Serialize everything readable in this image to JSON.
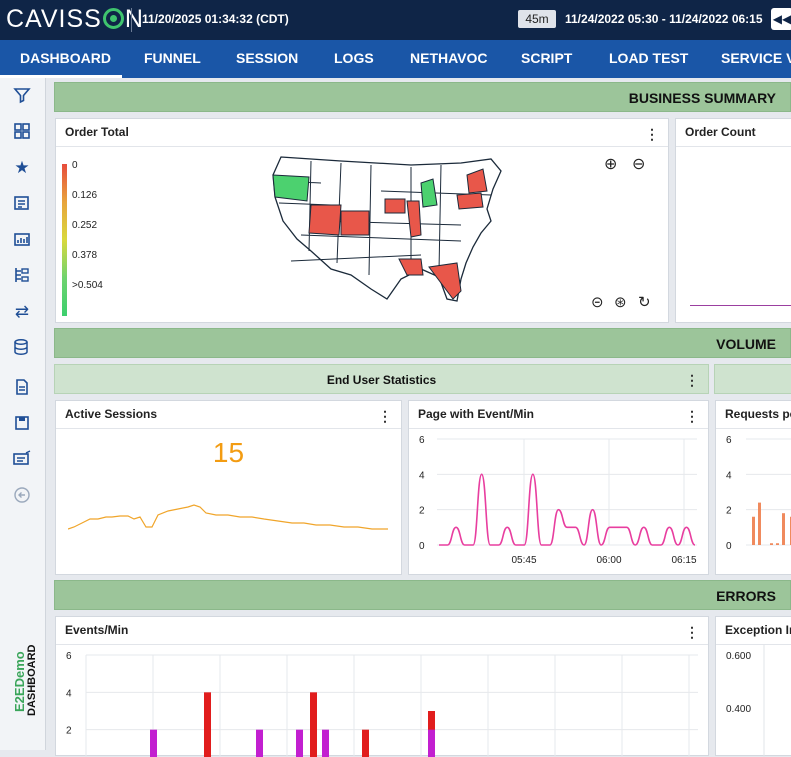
{
  "header": {
    "logo_text": "CAVISSON",
    "current_time": "11/20/2025 01:34:32 (CDT)",
    "range_badge": "45m",
    "range_text": "11/24/2022 05:30  -  11/24/2022 06:15"
  },
  "nav": {
    "items": [
      {
        "label": "DASHBOARD",
        "active": true
      },
      {
        "label": "FUNNEL"
      },
      {
        "label": "SESSION"
      },
      {
        "label": "LOGS"
      },
      {
        "label": "NETHAVOC"
      },
      {
        "label": "SCRIPT"
      },
      {
        "label": "LOAD TEST"
      },
      {
        "label": "SERVICE V"
      }
    ]
  },
  "sidebar": {
    "icons": [
      "filter-icon",
      "grid-icon",
      "star-icon",
      "report-icon",
      "chart-icon",
      "hierarchy-icon",
      "swap-icon",
      "database-icon",
      "document-icon",
      "save-icon",
      "monitor-icon",
      "back-icon"
    ],
    "project": "E2EDemo",
    "page": "DASHBOARD"
  },
  "sections": {
    "business_summary": "BUSINESS SUMMARY",
    "volume": "VOLUME",
    "errors": "ERRORS"
  },
  "order_total": {
    "title": "Order Total",
    "legend": [
      "0",
      "0.126",
      "0.252",
      "0.378",
      ">0.504"
    ]
  },
  "order_count": {
    "title": "Order Count"
  },
  "end_user_stats": {
    "title": "End User Statistics"
  },
  "active_sessions": {
    "title": "Active Sessions",
    "value": "15"
  },
  "page_event": {
    "title": "Page with Event/Min",
    "chart_data": {
      "type": "line",
      "y_ticks": [
        "6",
        "4",
        "2",
        "0"
      ],
      "x_ticks": [
        "05:45",
        "06:00",
        "06:15"
      ],
      "ylim": [
        0,
        6
      ],
      "series": [
        {
          "color": "#e83e9f",
          "values": [
            0,
            0,
            1,
            0,
            0,
            4,
            0,
            0,
            1,
            0,
            0,
            4,
            0,
            0,
            2,
            1,
            1,
            0,
            2,
            0,
            1,
            1,
            1,
            0,
            1,
            0,
            0,
            1,
            0,
            1,
            0
          ]
        }
      ]
    }
  },
  "requests": {
    "title": "Requests pe",
    "chart_data": {
      "type": "bar",
      "y_ticks": [
        "6",
        "4",
        "2",
        "0"
      ],
      "ylim": [
        0,
        6
      ],
      "values": [
        1.6,
        2.4,
        0.1,
        0.1,
        1.8,
        1.6
      ]
    }
  },
  "events_min": {
    "title": "Events/Min",
    "chart_data": {
      "type": "bar",
      "y_ticks": [
        "6",
        "4",
        "2"
      ],
      "ylim": [
        0,
        6
      ]
    }
  },
  "exception": {
    "title": "Exception In",
    "y_ticks": [
      "0.600",
      "0.400"
    ]
  },
  "menu_glyph": "⋮"
}
